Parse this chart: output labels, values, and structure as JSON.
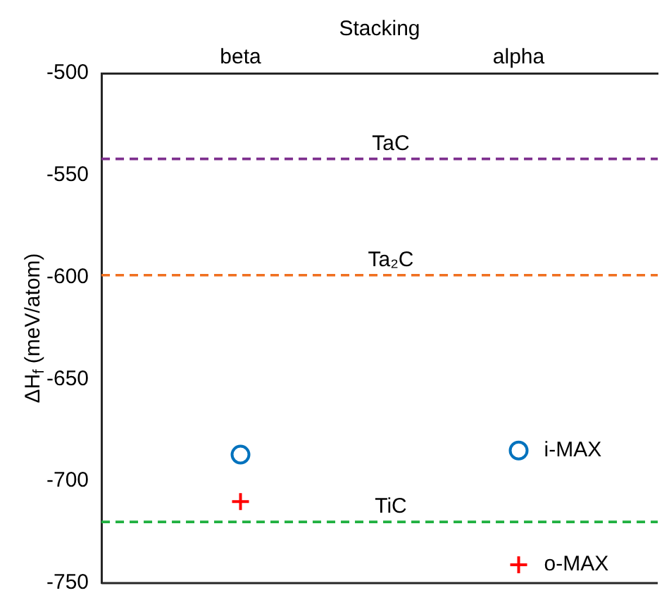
{
  "chart_data": {
    "type": "scatter",
    "xlabel": "Stacking",
    "ylabel": "ΔH$_{f}$ (meV/atom)",
    "categories": [
      "beta",
      "alpha"
    ],
    "series": [
      {
        "name": "i-MAX",
        "color": "#0072bd",
        "marker": "circle",
        "values": [
          -687,
          -685
        ]
      },
      {
        "name": "o-MAX",
        "color": "#ff0000",
        "marker": "cross",
        "values": [
          -710,
          -741
        ]
      }
    ],
    "ylim": [
      -750,
      -500
    ],
    "yticks": [
      -750,
      -700,
      -650,
      -600,
      -550,
      -500
    ],
    "grid": false,
    "legend": false,
    "ref_lines": [
      {
        "axis": "y",
        "value": -542,
        "label": "TaC",
        "color": "#7e2f8e",
        "line_style": "dashed"
      },
      {
        "axis": "y",
        "value": -599,
        "label": "Ta₂C",
        "color": "#f07020",
        "line_style": "dashed"
      },
      {
        "axis": "y",
        "value": -720,
        "label": "TiC",
        "color": "#20b040",
        "line_style": "dashed"
      }
    ]
  }
}
